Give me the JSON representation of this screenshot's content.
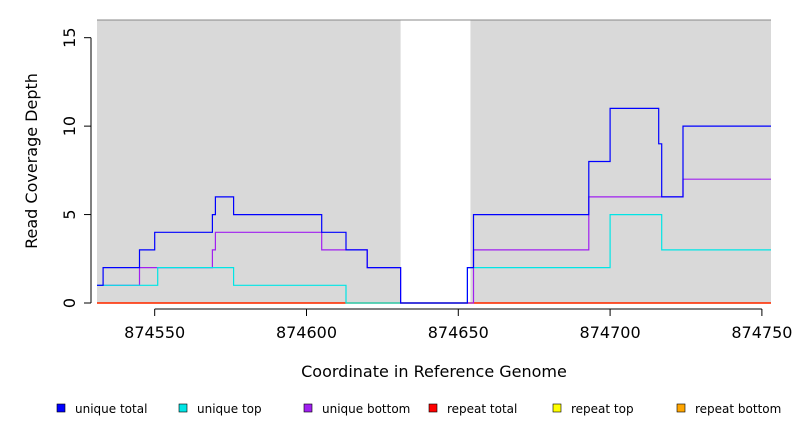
{
  "chart_data": {
    "type": "line",
    "line_style": "step",
    "xlabel": "Coordinate in Reference Genome",
    "ylabel": "Read Coverage Depth",
    "xlim": [
      874531,
      874753
    ],
    "ylim": [
      0,
      16
    ],
    "x_ticks": [
      874550,
      874600,
      874650,
      874700,
      874750
    ],
    "x_tick_labels": [
      "874550",
      "874600",
      "874650",
      "874700",
      "874750"
    ],
    "y_ticks": [
      0,
      5,
      10,
      15
    ],
    "y_tick_labels": [
      "0",
      "5",
      "10",
      "15"
    ],
    "background_color": "#d9d9d9",
    "highlight_region": {
      "x": [
        874631,
        874654
      ],
      "color": "#ffffff"
    },
    "legend_position": "bottom",
    "series": [
      {
        "name": "unique total",
        "color": "#0000ff",
        "steps": [
          [
            874531,
            1
          ],
          [
            874533,
            2
          ],
          [
            874545,
            3
          ],
          [
            874550,
            4
          ],
          [
            874569,
            5
          ],
          [
            874570,
            6
          ],
          [
            874576,
            5
          ],
          [
            874605,
            4
          ],
          [
            874613,
            3
          ],
          [
            874620,
            2
          ],
          [
            874631,
            0
          ],
          [
            874653,
            2
          ],
          [
            874655,
            5
          ],
          [
            874693,
            8
          ],
          [
            874700,
            11
          ],
          [
            874716,
            9
          ],
          [
            874717,
            6
          ],
          [
            874724,
            10
          ],
          [
            874753,
            10
          ]
        ]
      },
      {
        "name": "unique top",
        "color": "#00e5e5",
        "steps": [
          [
            874531,
            1
          ],
          [
            874533,
            1
          ],
          [
            874551,
            2
          ],
          [
            874576,
            1
          ],
          [
            874613,
            0
          ],
          [
            874631,
            0
          ],
          [
            874653,
            2
          ],
          [
            874700,
            5
          ],
          [
            874717,
            3
          ],
          [
            874753,
            3
          ]
        ]
      },
      {
        "name": "unique bottom",
        "color": "#a020f0",
        "steps": [
          [
            874531,
            1
          ],
          [
            874545,
            2
          ],
          [
            874569,
            3
          ],
          [
            874570,
            4
          ],
          [
            874605,
            3
          ],
          [
            874620,
            2
          ],
          [
            874631,
            0
          ],
          [
            874655,
            3
          ],
          [
            874693,
            6
          ],
          [
            874724,
            7
          ],
          [
            874753,
            7
          ]
        ]
      },
      {
        "name": "repeat total",
        "color": "#ff0000",
        "steps": [
          [
            874531,
            0
          ],
          [
            874753,
            0
          ]
        ]
      },
      {
        "name": "repeat top",
        "color": "#ffff00",
        "steps": [
          [
            874531,
            0
          ],
          [
            874753,
            0
          ]
        ]
      },
      {
        "name": "repeat bottom",
        "color": "#ffa500",
        "steps": [
          [
            874531,
            0
          ],
          [
            874753,
            0
          ]
        ]
      }
    ]
  }
}
